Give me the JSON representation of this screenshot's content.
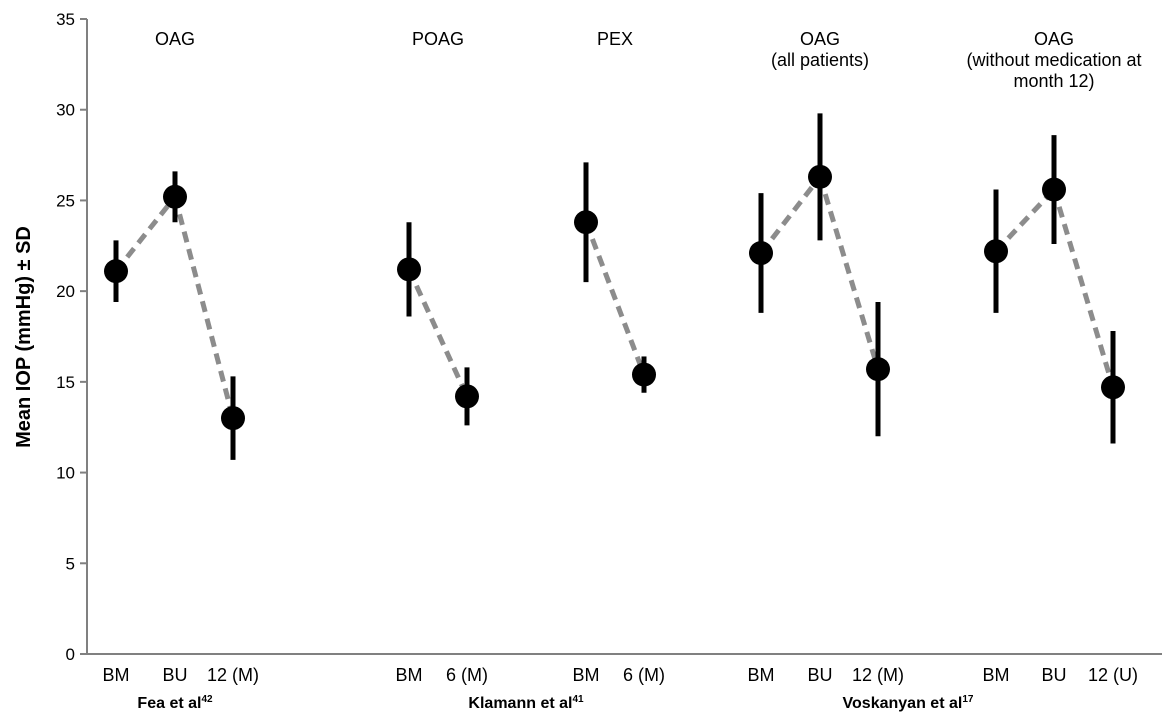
{
  "chart_data": {
    "type": "scatter",
    "ylabel": "Mean IOP (mmHg) ± SD",
    "ylim": [
      0,
      35
    ],
    "yticks": [
      0,
      5,
      10,
      15,
      20,
      25,
      30,
      35
    ],
    "grid": false,
    "marker_color": "#000000",
    "connector_color": "#8c8c8c",
    "points": [
      {
        "label": "BM",
        "mean": 21.1,
        "sd": 1.7,
        "segment": 0
      },
      {
        "label": "BU",
        "mean": 25.2,
        "sd": 1.4,
        "segment": 0
      },
      {
        "label": "12 (M)",
        "mean": 13.0,
        "sd": 2.3,
        "segment": 0
      },
      {
        "label": "BM",
        "mean": 21.2,
        "sd": 2.6,
        "segment": 1
      },
      {
        "label": "6 (M)",
        "mean": 14.2,
        "sd": 1.6,
        "segment": 1
      },
      {
        "label": "BM",
        "mean": 23.8,
        "sd": 3.3,
        "segment": 2
      },
      {
        "label": "6 (M)",
        "mean": 15.4,
        "sd": 1.0,
        "segment": 2
      },
      {
        "label": "BM",
        "mean": 22.1,
        "sd": 3.3,
        "segment": 3
      },
      {
        "label": "BU",
        "mean": 26.3,
        "sd": 3.5,
        "segment": 3
      },
      {
        "label": "12 (M)",
        "mean": 15.7,
        "sd": 3.7,
        "segment": 3
      },
      {
        "label": "BM",
        "mean": 22.2,
        "sd": 3.4,
        "segment": 4
      },
      {
        "label": "BU",
        "mean": 25.6,
        "sd": 3.0,
        "segment": 4
      },
      {
        "label": "12 (U)",
        "mean": 14.7,
        "sd": 3.1,
        "segment": 4
      }
    ],
    "group_labels": [
      {
        "lines": [
          "OAG"
        ]
      },
      {
        "lines": [
          "POAG"
        ]
      },
      {
        "lines": [
          "PEX"
        ]
      },
      {
        "lines": [
          "OAG",
          "(all patients)"
        ]
      },
      {
        "lines": [
          "OAG",
          "(without medication at",
          "month 12)"
        ]
      }
    ],
    "studies": [
      {
        "name": "Fea et al",
        "ref": "42"
      },
      {
        "name": "Klamann et al",
        "ref": "41"
      },
      {
        "name": "Voskanyan et al",
        "ref": "17"
      }
    ]
  }
}
